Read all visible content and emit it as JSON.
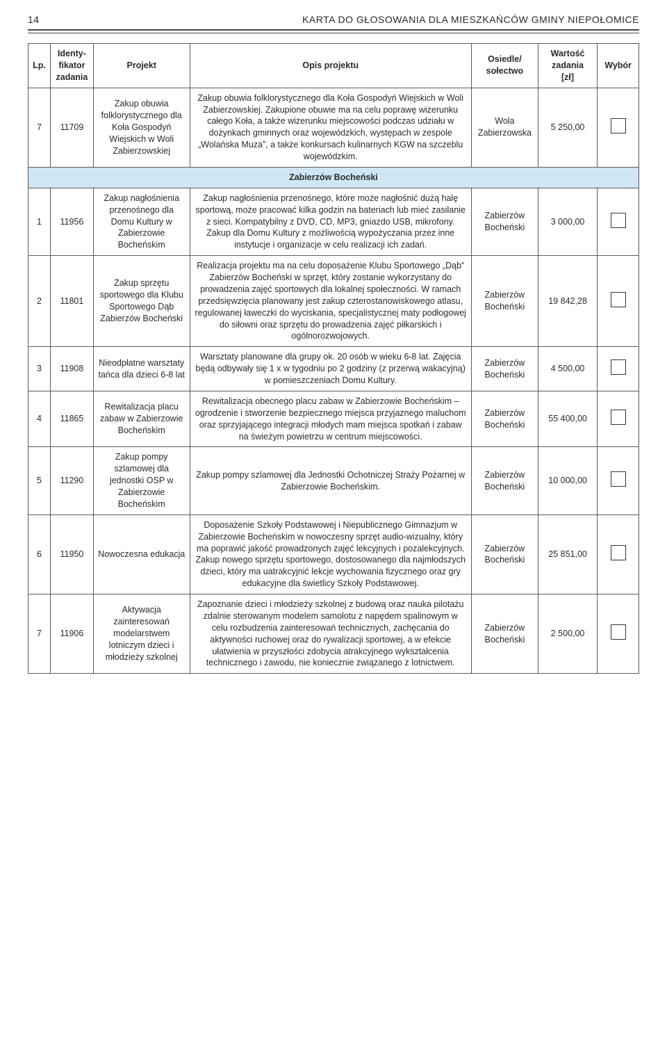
{
  "header": {
    "page_number": "14",
    "title": "KARTA DO GŁOSOWANIA DLA MIESZKAŃCÓW GMINY NIEPOŁOMICE"
  },
  "columns": {
    "lp": "Lp.",
    "id": "Identy-\nfikator\nzadania",
    "proj": "Projekt",
    "opis": "Opis projektu",
    "osiedle": "Osiedle/\nsołectwo",
    "wartosc": "Wartość\nzadania\n[zł]",
    "wybor": "Wybór"
  },
  "section_label": "Zabierzów Bocheński",
  "rows": [
    {
      "lp": "7",
      "id": "11709",
      "proj": "Zakup obuwia folklorystycznego dla Koła Gospodyń Wiejskich w Woli Zabierzowskiej",
      "opis": "Zakup obuwia folklorystycznego dla Koła Gospodyń Wiejskich w Woli Zabierzowskiej. Zakupione obuwie ma na celu poprawę wizerunku całego Koła, a także wizerunku miejscowości podczas udziału w dożynkach gminnych oraz wojewódzkich, występach w zespole „Wolańska Muza”, a także konkursach kulinarnych KGW na szczeblu wojewódzkim.",
      "osiedle": "Wola Zabierzowska",
      "wartosc": "5 250,00"
    },
    {
      "lp": "1",
      "id": "11956",
      "proj": "Zakup nagłośnienia przenośnego dla Domu Kultury w Zabierzowie Bocheńskim",
      "opis": "Zakup nagłośnienia przenośnego, które może nagłośnić dużą halę sportową, może pracować kilka godzin na bateriach lub mieć zasilanie z sieci. Kompatybilny z DVD, CD, MP3, gniazdo USB, mikrofony. Zakup dla Domu Kultury z możliwością wypożyczania przez inne instytucje i organizacje w celu realizacji ich zadań.",
      "osiedle": "Zabierzów Bocheński",
      "wartosc": "3 000,00"
    },
    {
      "lp": "2",
      "id": "11801",
      "proj": "Zakup sprzętu sportowego dla Klubu Sportowego Dąb Zabierzów Bocheński",
      "opis": "Realizacja projektu ma na celu doposażenie Klubu Sportowego „Dąb” Zabierzów Bocheński w sprzęt, który zostanie wykorzystany do prowadzenia zajęć sportowych dla lokalnej społeczności. W ramach przedsięwzięcia planowany jest zakup czterostanowiskowego atlasu, regulowanej ławeczki do wyciskania, specjalistycznej maty podłogowej do siłowni oraz sprzętu do prowadzenia zajęć piłkarskich i ogólnorozwojowych.",
      "osiedle": "Zabierzów Bocheński",
      "wartosc": "19 842,28"
    },
    {
      "lp": "3",
      "id": "11908",
      "proj": "Nieodpłatne warsztaty tańca dla dzieci 6-8 lat",
      "opis": "Warsztaty planowane dla grupy ok. 20 osób w wieku 6-8 lat. Zajęcia będą odbywały się 1 x w tygodniu po 2 godziny (z przerwą wakacyjną) w pomieszczeniach Domu Kultury.",
      "osiedle": "Zabierzów Bocheński",
      "wartosc": "4 500,00"
    },
    {
      "lp": "4",
      "id": "11865",
      "proj": "Rewitalizacja placu zabaw w Zabierzowie Bocheńskim",
      "opis": "Rewitalizacja obecnego placu zabaw w Zabierzowie Bocheńskim – ogrodzenie i stworzenie bezpiecznego miejsca przyjaznego maluchom oraz sprzyjającego integracji młodych mam miejsca spotkań i zabaw na świeżym powietrzu w centrum miejscowości.",
      "osiedle": "Zabierzów Bocheński",
      "wartosc": "55 400,00"
    },
    {
      "lp": "5",
      "id": "11290",
      "proj": "Zakup pompy szlamowej dla jednostki OSP w Zabierzowie Bocheńskim",
      "opis": "Zakup pompy szlamowej dla Jednostki Ochotniczej Straży Pożarnej w Zabierzowie Bocheńskim.",
      "osiedle": "Zabierzów Bocheński",
      "wartosc": "10 000,00"
    },
    {
      "lp": "6",
      "id": "11950",
      "proj": "Nowoczesna edukacja",
      "opis": "Doposażenie Szkoły Podstawowej i Niepublicznego Gimnazjum w Zabierzowie Bocheńskim w nowoczesny sprzęt audio-wizualny, który ma poprawić jakość prowadzonych zajęć lekcyjnych i pozalekcyjnych. Zakup nowego sprzętu sportowego, dostosowanego dla najmłodszych dzieci, który ma uatrakcyjnić lekcje wychowania fizycznego oraz gry edukacyjne dla świetlicy Szkoły Podstawowej.",
      "osiedle": "Zabierzów Bocheński",
      "wartosc": "25 851,00"
    },
    {
      "lp": "7",
      "id": "11906",
      "proj": "Aktywacja zainteresowań modelarstwem lotniczym dzieci i młodzieży szkolnej",
      "opis": "Zapoznanie dzieci i młodzieży szkolnej z budową oraz nauka pilotażu zdalnie sterowanym modelem samolotu z napędem spalinowym w celu rozbudzenia zainteresowań technicznych, zachęcania do aktywności ruchowej oraz do rywalizacji sportowej, a w efekcie ułatwienia w przyszłości zdobycia atrakcyjnego wykształcenia technicznego i zawodu, nie koniecznie związanego z lotnictwem.",
      "osiedle": "Zabierzów Bocheński",
      "wartosc": "2 500,00"
    }
  ]
}
